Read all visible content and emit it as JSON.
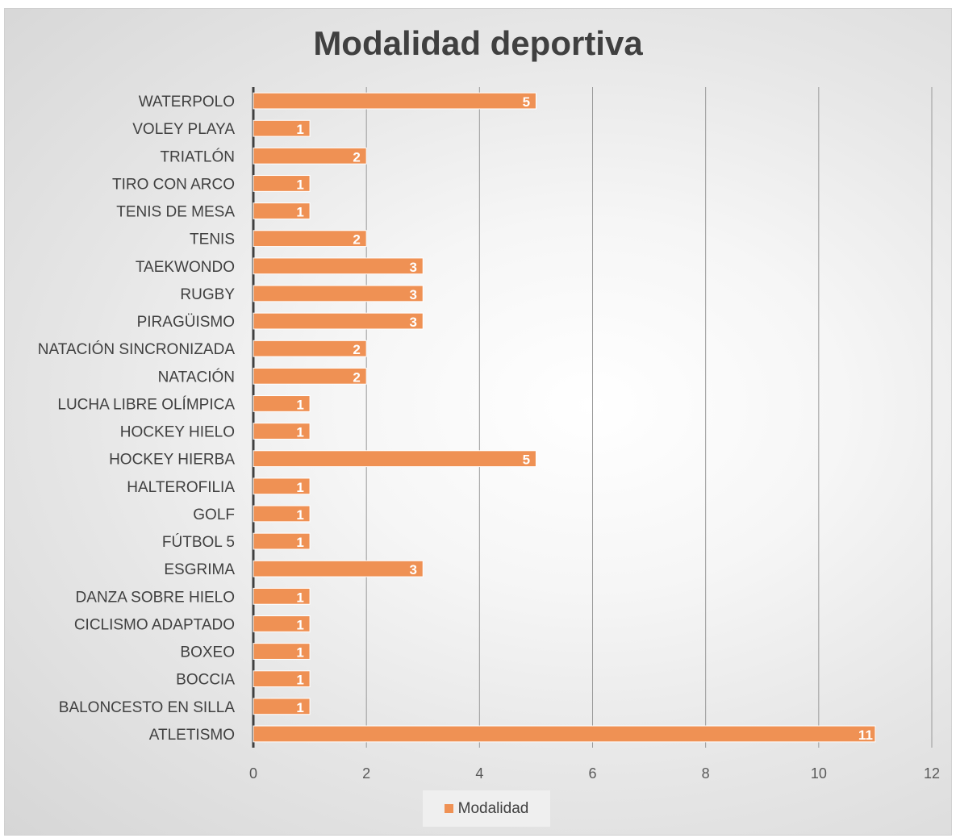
{
  "chart_data": {
    "type": "bar",
    "orientation": "horizontal",
    "title": "Modalidad deportiva",
    "categories": [
      "WATERPOLO",
      "VOLEY PLAYA",
      "TRIATLÓN",
      "TIRO CON ARCO",
      "TENIS DE MESA",
      "TENIS",
      "TAEKWONDO",
      "RUGBY",
      "PIRAGÜISMO",
      "NATACIÓN SINCRONIZADA",
      "NATACIÓN",
      "LUCHA LIBRE OLÍMPICA",
      "HOCKEY HIELO",
      "HOCKEY HIERBA",
      "HALTEROFILIA",
      "GOLF",
      "FÚTBOL 5",
      "ESGRIMA",
      "DANZA SOBRE HIELO",
      "CICLISMO ADAPTADO",
      "BOXEO",
      "BOCCIA",
      "BALONCESTO EN SILLA",
      "ATLETISMO"
    ],
    "series": [
      {
        "name": "Modalidad",
        "values": [
          5,
          1,
          2,
          1,
          1,
          2,
          3,
          3,
          3,
          2,
          2,
          1,
          1,
          5,
          1,
          1,
          1,
          3,
          1,
          1,
          1,
          1,
          1,
          11
        ],
        "color": "#ef9154"
      }
    ],
    "xlim": [
      0,
      12
    ],
    "xticks": [
      0,
      2,
      4,
      6,
      8,
      10,
      12
    ],
    "grid": true,
    "legend": "bottom",
    "data_labels": true
  }
}
